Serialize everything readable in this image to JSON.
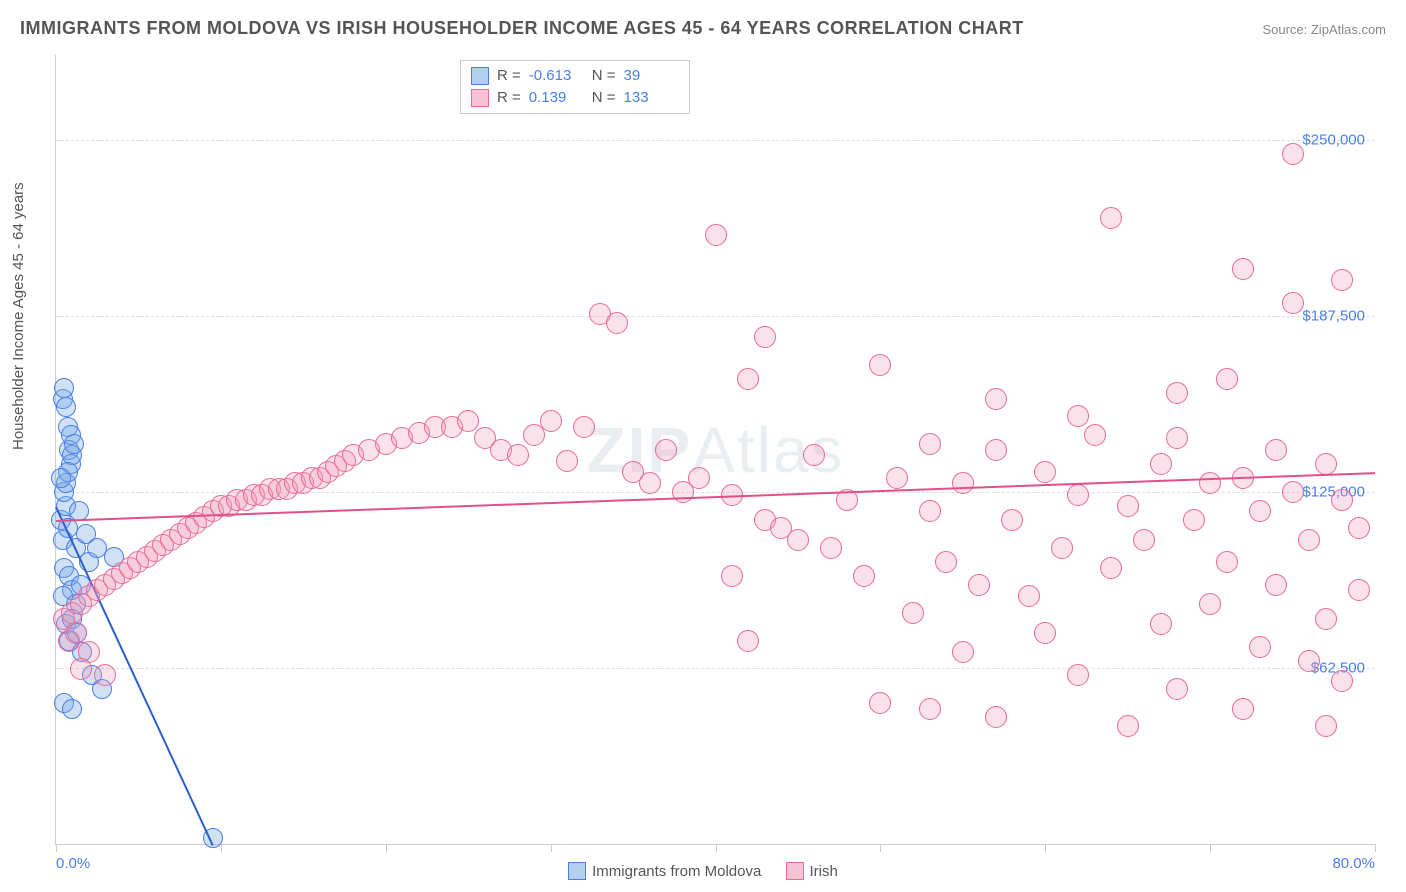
{
  "title": "IMMIGRANTS FROM MOLDOVA VS IRISH HOUSEHOLDER INCOME AGES 45 - 64 YEARS CORRELATION CHART",
  "source": "Source: ZipAtlas.com",
  "y_axis_label": "Householder Income Ages 45 - 64 years",
  "watermark_bold": "ZIP",
  "watermark_thin": "Atlas",
  "chart": {
    "type": "scatter",
    "xlim": [
      0,
      80
    ],
    "ylim": [
      0,
      280000
    ],
    "x_tick_positions": [
      0,
      10,
      20,
      30,
      40,
      50,
      60,
      70,
      80
    ],
    "x_tick_labels": {
      "0": "0.0%",
      "80": "80.0%"
    },
    "y_grid": [
      62500,
      125000,
      187500,
      250000
    ],
    "y_tick_labels": [
      "$62,500",
      "$125,000",
      "$187,500",
      "$250,000"
    ],
    "grid_color": "#dddddd",
    "axis_color": "#cccccc",
    "background": "#ffffff",
    "tick_label_color": "#4a7ee8",
    "axis_label_color": "#555555"
  },
  "series": [
    {
      "name": "Immigrants from Moldova",
      "color_fill": "rgba(120, 170, 230, 0.35)",
      "color_stroke": "#4a7ee8",
      "swatch_fill": "#b5cff0",
      "swatch_border": "#4a7ee8",
      "marker_radius": 10,
      "R": "-0.613",
      "N": "39",
      "trend": {
        "x1": 0,
        "y1": 120000,
        "x2": 9.5,
        "y2": 0,
        "color": "#2c5fc9",
        "width": 2
      },
      "points": [
        [
          0.3,
          115000
        ],
        [
          0.4,
          108000
        ],
        [
          0.5,
          98000
        ],
        [
          0.6,
          120000
        ],
        [
          0.7,
          112000
        ],
        [
          0.8,
          140000
        ],
        [
          0.9,
          135000
        ],
        [
          1.0,
          138000
        ],
        [
          0.5,
          125000
        ],
        [
          0.6,
          128000
        ],
        [
          0.7,
          132000
        ],
        [
          1.2,
          105000
        ],
        [
          1.4,
          118000
        ],
        [
          0.8,
          95000
        ],
        [
          1.0,
          90000
        ],
        [
          1.2,
          85000
        ],
        [
          1.5,
          92000
        ],
        [
          1.8,
          110000
        ],
        [
          2.0,
          100000
        ],
        [
          2.5,
          105000
        ],
        [
          0.4,
          158000
        ],
        [
          0.5,
          162000
        ],
        [
          0.6,
          155000
        ],
        [
          0.7,
          148000
        ],
        [
          0.9,
          145000
        ],
        [
          1.1,
          142000
        ],
        [
          0.3,
          130000
        ],
        [
          0.4,
          88000
        ],
        [
          0.6,
          78000
        ],
        [
          0.8,
          72000
        ],
        [
          1.0,
          80000
        ],
        [
          1.3,
          75000
        ],
        [
          1.6,
          68000
        ],
        [
          2.2,
          60000
        ],
        [
          2.8,
          55000
        ],
        [
          3.5,
          102000
        ],
        [
          0.5,
          50000
        ],
        [
          1.0,
          48000
        ],
        [
          9.5,
          2000
        ]
      ]
    },
    {
      "name": "Irish",
      "color_fill": "rgba(240, 150, 180, 0.28)",
      "color_stroke": "#e86a9a",
      "swatch_fill": "#f5c3d4",
      "swatch_border": "#e86a9a",
      "marker_radius": 11,
      "R": "0.139",
      "N": "133",
      "trend": {
        "x1": 0,
        "y1": 115000,
        "x2": 80,
        "y2": 132000,
        "color": "#e05088",
        "width": 2
      },
      "points": [
        [
          0.5,
          80000
        ],
        [
          1,
          82000
        ],
        [
          1.5,
          85000
        ],
        [
          2,
          88000
        ],
        [
          2.5,
          90000
        ],
        [
          3,
          92000
        ],
        [
          3.5,
          94000
        ],
        [
          4,
          96000
        ],
        [
          4.5,
          98000
        ],
        [
          5,
          100000
        ],
        [
          5.5,
          102000
        ],
        [
          6,
          104000
        ],
        [
          6.5,
          106000
        ],
        [
          7,
          108000
        ],
        [
          7.5,
          110000
        ],
        [
          8,
          112000
        ],
        [
          8.5,
          114000
        ],
        [
          9,
          116000
        ],
        [
          9.5,
          118000
        ],
        [
          10,
          120000
        ],
        [
          10.5,
          120000
        ],
        [
          11,
          122000
        ],
        [
          11.5,
          122000
        ],
        [
          12,
          124000
        ],
        [
          12.5,
          124000
        ],
        [
          13,
          126000
        ],
        [
          13.5,
          126000
        ],
        [
          14,
          126000
        ],
        [
          14.5,
          128000
        ],
        [
          15,
          128000
        ],
        [
          15.5,
          130000
        ],
        [
          16,
          130000
        ],
        [
          16.5,
          132000
        ],
        [
          17,
          134000
        ],
        [
          17.5,
          136000
        ],
        [
          18,
          138000
        ],
        [
          19,
          140000
        ],
        [
          20,
          142000
        ],
        [
          21,
          144000
        ],
        [
          22,
          146000
        ],
        [
          23,
          148000
        ],
        [
          24,
          148000
        ],
        [
          25,
          150000
        ],
        [
          26,
          144000
        ],
        [
          27,
          140000
        ],
        [
          28,
          138000
        ],
        [
          29,
          145000
        ],
        [
          30,
          150000
        ],
        [
          31,
          136000
        ],
        [
          32,
          148000
        ],
        [
          33,
          188000
        ],
        [
          34,
          185000
        ],
        [
          35,
          132000
        ],
        [
          36,
          128000
        ],
        [
          37,
          140000
        ],
        [
          38,
          125000
        ],
        [
          39,
          130000
        ],
        [
          40,
          216000
        ],
        [
          41,
          124000
        ],
        [
          41,
          95000
        ],
        [
          42,
          165000
        ],
        [
          42,
          72000
        ],
        [
          43,
          115000
        ],
        [
          44,
          112000
        ],
        [
          45,
          108000
        ],
        [
          46,
          138000
        ],
        [
          47,
          105000
        ],
        [
          48,
          122000
        ],
        [
          49,
          95000
        ],
        [
          50,
          170000
        ],
        [
          50,
          50000
        ],
        [
          51,
          130000
        ],
        [
          52,
          82000
        ],
        [
          53,
          118000
        ],
        [
          53,
          48000
        ],
        [
          54,
          100000
        ],
        [
          55,
          128000
        ],
        [
          55,
          68000
        ],
        [
          56,
          92000
        ],
        [
          57,
          140000
        ],
        [
          57,
          45000
        ],
        [
          58,
          115000
        ],
        [
          59,
          88000
        ],
        [
          60,
          132000
        ],
        [
          60,
          75000
        ],
        [
          61,
          105000
        ],
        [
          62,
          124000
        ],
        [
          62,
          60000
        ],
        [
          63,
          145000
        ],
        [
          64,
          98000
        ],
        [
          64,
          222000
        ],
        [
          65,
          120000
        ],
        [
          65,
          42000
        ],
        [
          66,
          108000
        ],
        [
          67,
          135000
        ],
        [
          67,
          78000
        ],
        [
          68,
          160000
        ],
        [
          68,
          55000
        ],
        [
          69,
          115000
        ],
        [
          70,
          128000
        ],
        [
          70,
          85000
        ],
        [
          71,
          100000
        ],
        [
          71,
          165000
        ],
        [
          72,
          130000
        ],
        [
          72,
          204000
        ],
        [
          72,
          48000
        ],
        [
          73,
          118000
        ],
        [
          73,
          70000
        ],
        [
          74,
          140000
        ],
        [
          74,
          92000
        ],
        [
          75,
          125000
        ],
        [
          75,
          245000
        ],
        [
          75,
          192000
        ],
        [
          76,
          108000
        ],
        [
          76,
          65000
        ],
        [
          77,
          135000
        ],
        [
          77,
          80000
        ],
        [
          77,
          42000
        ],
        [
          78,
          122000
        ],
        [
          78,
          200000
        ],
        [
          78,
          58000
        ],
        [
          79,
          112000
        ],
        [
          79,
          90000
        ],
        [
          43,
          180000
        ],
        [
          53,
          142000
        ],
        [
          57,
          158000
        ],
        [
          62,
          152000
        ],
        [
          68,
          144000
        ],
        [
          0.8,
          72000
        ],
        [
          1.2,
          75000
        ],
        [
          2,
          68000
        ],
        [
          3,
          60000
        ],
        [
          1.5,
          62000
        ]
      ]
    }
  ],
  "legend_top_labels": {
    "R": "R =",
    "N": "N ="
  },
  "legend_bottom": [
    {
      "label": "Immigrants from Moldova"
    },
    {
      "label": "Irish"
    }
  ]
}
